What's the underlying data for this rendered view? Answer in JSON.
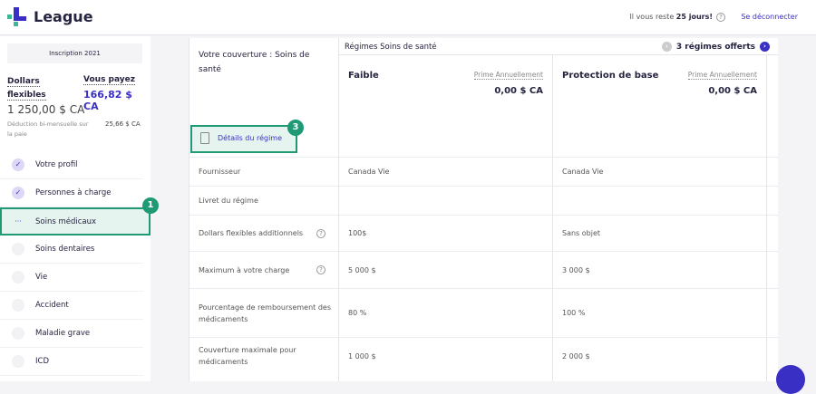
{
  "header": {
    "brand": "League",
    "days_prefix": "Il vous reste ",
    "days_value": "25 jours!",
    "logout": "Se déconnecter"
  },
  "sidebar": {
    "enrollment": "Inscription 2021",
    "flex_label_1": "Dollars",
    "flex_label_2": "flexibles",
    "flex_value": "1 250,00 $ CA",
    "pay_label": "Vous payez",
    "pay_value": "166,82 $ CA",
    "deduction_label": "Déduction bi-mensuelle sur la paie",
    "deduction_value": "25,66 $ CA",
    "items": [
      {
        "label": "Votre profil",
        "state": "done"
      },
      {
        "label": "Personnes à charge",
        "state": "done"
      },
      {
        "label": "Soins médicaux",
        "state": "active"
      },
      {
        "label": "Soins dentaires",
        "state": "todo"
      },
      {
        "label": "Vie",
        "state": "todo"
      },
      {
        "label": "Accident",
        "state": "todo"
      },
      {
        "label": "Maladie grave",
        "state": "todo"
      },
      {
        "label": "ICD",
        "state": "todo"
      }
    ]
  },
  "annotations": {
    "one": "1",
    "three": "3"
  },
  "main": {
    "coverage_title": "Votre couverture : Soins de santé",
    "details_button": "Détails du régime",
    "plans_title": "Régimes Soins de santé",
    "offers": "3 régimes offerts",
    "plans": [
      {
        "name": "Faible",
        "premium_label": "Prime Annuellement",
        "premium": "0,00 $ CA"
      },
      {
        "name": "Protection de base",
        "premium_label": "Prime Annuellement",
        "premium": "0,00 $ CA"
      }
    ],
    "rows": [
      {
        "label": "Fournisseur",
        "values": [
          "Canada Vie",
          "Canada Vie"
        ]
      },
      {
        "label": "Livret du régime",
        "values": [
          "",
          ""
        ]
      },
      {
        "label": "Dollars flexibles additionnels",
        "help": true,
        "values": [
          "100$",
          "Sans objet"
        ]
      },
      {
        "label": "Maximum à votre charge",
        "help": true,
        "values": [
          "5 000 $",
          "3 000 $"
        ]
      },
      {
        "label": "Pourcentage de remboursement des médicaments",
        "values": [
          "80 %",
          "100 %"
        ]
      },
      {
        "label": "Couverture maximale pour médicaments",
        "values": [
          "1 000 $",
          "2 000 $"
        ]
      }
    ]
  },
  "colors": {
    "accent": "#3a2fc4",
    "highlight": "#1f9a75"
  }
}
